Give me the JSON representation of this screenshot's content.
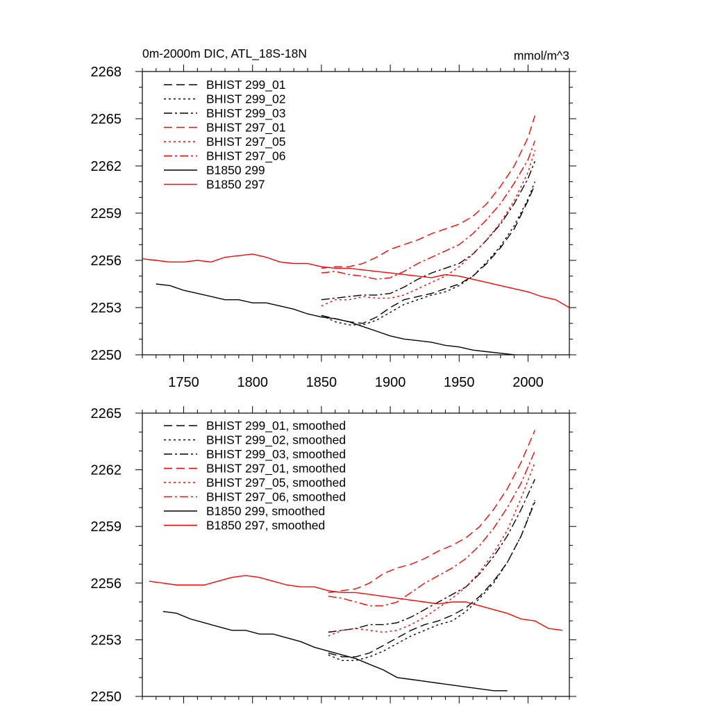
{
  "chart_data": [
    {
      "type": "line",
      "title": "0m-2000m DIC, ATL_18S-18N",
      "units": "mmol/m^3",
      "xlim": [
        1720,
        2030
      ],
      "ylim": [
        2250,
        2268
      ],
      "xticks": [
        1750,
        1800,
        1850,
        1900,
        1950,
        2000
      ],
      "yticks": [
        2250,
        2253,
        2256,
        2259,
        2262,
        2265,
        2268
      ],
      "legend_position": "top-left",
      "series": [
        {
          "name": "BHIST 299_01",
          "color": "#000000",
          "dash": "dash",
          "x": [
            1850,
            1860,
            1870,
            1880,
            1890,
            1900,
            1910,
            1920,
            1930,
            1940,
            1950,
            1960,
            1970,
            1980,
            1990,
            2000,
            2005
          ],
          "y": [
            2252.5,
            2252.3,
            2252.1,
            2252.0,
            2252.4,
            2253.0,
            2253.5,
            2253.7,
            2253.9,
            2254.2,
            2254.5,
            2255.0,
            2255.8,
            2256.8,
            2258.0,
            2259.8,
            2260.8
          ]
        },
        {
          "name": "BHIST 299_02",
          "color": "#000000",
          "dash": "dot",
          "x": [
            1850,
            1860,
            1870,
            1880,
            1890,
            1900,
            1910,
            1920,
            1930,
            1940,
            1950,
            1960,
            1970,
            1980,
            1990,
            2000,
            2005
          ],
          "y": [
            2252.5,
            2252.1,
            2251.9,
            2251.9,
            2252.2,
            2252.7,
            2253.2,
            2253.5,
            2253.8,
            2254.0,
            2254.4,
            2255.0,
            2255.9,
            2256.9,
            2258.2,
            2259.9,
            2261.0
          ]
        },
        {
          "name": "BHIST 299_03",
          "color": "#000000",
          "dash": "dashdot",
          "x": [
            1850,
            1860,
            1870,
            1880,
            1890,
            1900,
            1910,
            1920,
            1930,
            1940,
            1950,
            1960,
            1970,
            1980,
            1990,
            2000,
            2005
          ],
          "y": [
            2253.5,
            2253.6,
            2253.7,
            2253.8,
            2253.8,
            2253.9,
            2254.3,
            2254.8,
            2255.2,
            2255.5,
            2255.8,
            2256.4,
            2257.3,
            2258.3,
            2259.6,
            2261.2,
            2262.3
          ]
        },
        {
          "name": "BHIST 297_01",
          "color": "#ff0000",
          "dash": "dash",
          "x": [
            1850,
            1860,
            1870,
            1880,
            1890,
            1900,
            1910,
            1920,
            1930,
            1940,
            1950,
            1960,
            1970,
            1980,
            1990,
            2000,
            2005
          ],
          "y": [
            2255.5,
            2255.6,
            2255.6,
            2255.8,
            2256.2,
            2256.7,
            2257.0,
            2257.3,
            2257.7,
            2258.0,
            2258.3,
            2258.8,
            2259.6,
            2260.7,
            2262.0,
            2263.8,
            2265.2
          ]
        },
        {
          "name": "BHIST 297_05",
          "color": "#ff0000",
          "dash": "dot",
          "x": [
            1850,
            1860,
            1870,
            1880,
            1890,
            1900,
            1910,
            1920,
            1930,
            1940,
            1950,
            1960,
            1970,
            1980,
            1990,
            2000,
            2005
          ],
          "y": [
            2253.1,
            2253.5,
            2253.5,
            2253.7,
            2253.6,
            2253.6,
            2253.8,
            2254.2,
            2254.6,
            2255.0,
            2255.6,
            2256.4,
            2257.3,
            2258.4,
            2259.8,
            2261.6,
            2263.0
          ]
        },
        {
          "name": "BHIST 297_06",
          "color": "#ff0000",
          "dash": "dashdot",
          "x": [
            1850,
            1860,
            1870,
            1880,
            1890,
            1900,
            1910,
            1920,
            1930,
            1940,
            1950,
            1960,
            1970,
            1980,
            1990,
            2000,
            2005
          ],
          "y": [
            2255.2,
            2255.3,
            2255.1,
            2255.0,
            2254.8,
            2254.9,
            2255.3,
            2255.8,
            2256.2,
            2256.6,
            2257.0,
            2257.7,
            2258.6,
            2259.6,
            2260.9,
            2262.4,
            2263.6
          ]
        },
        {
          "name": "B1850 299",
          "color": "#000000",
          "dash": "solid",
          "x": [
            1730,
            1740,
            1750,
            1760,
            1770,
            1780,
            1790,
            1800,
            1810,
            1820,
            1830,
            1840,
            1850,
            1860,
            1870,
            1880,
            1890,
            1900,
            1910,
            1920,
            1930,
            1940,
            1950,
            1960,
            1970,
            1980,
            1990
          ],
          "y": [
            2254.5,
            2254.4,
            2254.1,
            2253.9,
            2253.7,
            2253.5,
            2253.5,
            2253.3,
            2253.3,
            2253.1,
            2252.9,
            2252.6,
            2252.4,
            2252.3,
            2252.1,
            2251.8,
            2251.5,
            2251.2,
            2251.0,
            2250.9,
            2250.8,
            2250.6,
            2250.5,
            2250.3,
            2250.2,
            2250.1,
            2250.0
          ]
        },
        {
          "name": "B1850 297",
          "color": "#ff0000",
          "dash": "solid",
          "x": [
            1720,
            1730,
            1740,
            1750,
            1760,
            1770,
            1780,
            1790,
            1800,
            1810,
            1820,
            1830,
            1840,
            1850,
            1860,
            1870,
            1880,
            1890,
            1900,
            1910,
            1920,
            1930,
            1940,
            1950,
            1960,
            1970,
            1980,
            1990,
            2000,
            2010,
            2020,
            2030
          ],
          "y": [
            2256.1,
            2256.0,
            2255.9,
            2255.9,
            2256.0,
            2255.9,
            2256.2,
            2256.3,
            2256.4,
            2256.2,
            2255.9,
            2255.8,
            2255.8,
            2255.6,
            2255.5,
            2255.5,
            2255.4,
            2255.3,
            2255.2,
            2255.1,
            2255.0,
            2254.9,
            2255.1,
            2255.0,
            2254.8,
            2254.6,
            2254.4,
            2254.2,
            2254.0,
            2253.7,
            2253.5,
            2253.0
          ]
        }
      ]
    },
    {
      "type": "line",
      "title": "",
      "units": "",
      "xlim": [
        1720,
        2030
      ],
      "ylim": [
        2250,
        2265
      ],
      "xticks": [
        1750,
        1800,
        1850,
        1900,
        1950,
        2000
      ],
      "yticks": [
        2250,
        2253,
        2256,
        2259,
        2262,
        2265
      ],
      "legend_position": "top-left",
      "series": [
        {
          "name": "BHIST 299_01, smoothed",
          "color": "#000000",
          "dash": "dash",
          "x": [
            1855,
            1865,
            1875,
            1885,
            1895,
            1905,
            1915,
            1925,
            1935,
            1945,
            1955,
            1965,
            1975,
            1985,
            1995,
            2005
          ],
          "y": [
            2252.3,
            2252.1,
            2252.1,
            2252.3,
            2252.7,
            2253.1,
            2253.5,
            2253.8,
            2254.0,
            2254.3,
            2254.7,
            2255.3,
            2256.1,
            2257.1,
            2258.5,
            2260.3
          ]
        },
        {
          "name": "BHIST 299_02, smoothed",
          "color": "#000000",
          "dash": "dot",
          "x": [
            1855,
            1865,
            1875,
            1885,
            1895,
            1905,
            1915,
            1925,
            1935,
            1945,
            1955,
            1965,
            1975,
            1985,
            1995,
            2005
          ],
          "y": [
            2252.2,
            2251.9,
            2251.9,
            2252.1,
            2252.4,
            2252.8,
            2253.2,
            2253.5,
            2253.8,
            2254.0,
            2254.5,
            2255.2,
            2256.0,
            2257.1,
            2258.5,
            2260.4
          ]
        },
        {
          "name": "BHIST 299_03, smoothed",
          "color": "#000000",
          "dash": "dashdot",
          "x": [
            1855,
            1865,
            1875,
            1885,
            1895,
            1905,
            1915,
            1925,
            1935,
            1945,
            1955,
            1965,
            1975,
            1985,
            1995,
            2005
          ],
          "y": [
            2253.4,
            2253.5,
            2253.6,
            2253.8,
            2253.8,
            2253.9,
            2254.2,
            2254.6,
            2255.0,
            2255.4,
            2255.8,
            2256.5,
            2257.4,
            2258.5,
            2259.9,
            2261.5
          ]
        },
        {
          "name": "BHIST 297_01, smoothed",
          "color": "#ff0000",
          "dash": "dash",
          "x": [
            1855,
            1865,
            1875,
            1885,
            1895,
            1905,
            1915,
            1925,
            1935,
            1945,
            1955,
            1965,
            1975,
            1985,
            1995,
            2005
          ],
          "y": [
            2255.5,
            2255.6,
            2255.7,
            2256.0,
            2256.5,
            2256.8,
            2257.0,
            2257.3,
            2257.7,
            2258.0,
            2258.4,
            2259.0,
            2259.9,
            2261.0,
            2262.4,
            2264.1
          ]
        },
        {
          "name": "BHIST 297_05, smoothed",
          "color": "#ff0000",
          "dash": "dot",
          "x": [
            1855,
            1865,
            1875,
            1885,
            1895,
            1905,
            1915,
            1925,
            1935,
            1945,
            1955,
            1965,
            1975,
            1985,
            1995,
            2005
          ],
          "y": [
            2253.2,
            2253.5,
            2253.6,
            2253.5,
            2253.4,
            2253.5,
            2253.8,
            2254.2,
            2254.7,
            2255.2,
            2255.8,
            2256.6,
            2257.6,
            2258.8,
            2260.5,
            2262.4
          ]
        },
        {
          "name": "BHIST 297_06, smoothed",
          "color": "#ff0000",
          "dash": "dashdot",
          "x": [
            1855,
            1865,
            1875,
            1885,
            1895,
            1905,
            1915,
            1925,
            1935,
            1945,
            1955,
            1965,
            1975,
            1985,
            1995,
            2005
          ],
          "y": [
            2255.3,
            2255.2,
            2255.0,
            2254.8,
            2254.8,
            2255.0,
            2255.5,
            2256.0,
            2256.4,
            2256.8,
            2257.3,
            2258.0,
            2258.9,
            2260.0,
            2261.3,
            2263.0
          ]
        },
        {
          "name": "B1850 299, smoothed",
          "color": "#000000",
          "dash": "solid",
          "x": [
            1735,
            1745,
            1755,
            1765,
            1775,
            1785,
            1795,
            1805,
            1815,
            1825,
            1835,
            1845,
            1855,
            1865,
            1875,
            1885,
            1895,
            1905,
            1915,
            1925,
            1935,
            1945,
            1955,
            1965,
            1975,
            1985
          ],
          "y": [
            2254.5,
            2254.4,
            2254.1,
            2253.9,
            2253.7,
            2253.5,
            2253.5,
            2253.3,
            2253.3,
            2253.1,
            2252.9,
            2252.6,
            2252.4,
            2252.2,
            2252.0,
            2251.7,
            2251.4,
            2251.0,
            2250.9,
            2250.8,
            2250.7,
            2250.6,
            2250.5,
            2250.4,
            2250.3,
            2250.3
          ]
        },
        {
          "name": "B1850 297, smoothed",
          "color": "#ff0000",
          "dash": "solid",
          "x": [
            1725,
            1735,
            1745,
            1755,
            1765,
            1775,
            1785,
            1795,
            1805,
            1815,
            1825,
            1835,
            1845,
            1855,
            1865,
            1875,
            1885,
            1895,
            1905,
            1915,
            1925,
            1935,
            1945,
            1955,
            1965,
            1975,
            1985,
            1995,
            2005,
            2015,
            2025
          ],
          "y": [
            2256.1,
            2256.0,
            2255.9,
            2255.9,
            2255.9,
            2256.1,
            2256.3,
            2256.4,
            2256.3,
            2256.1,
            2255.9,
            2255.8,
            2255.8,
            2255.6,
            2255.5,
            2255.5,
            2255.4,
            2255.3,
            2255.2,
            2255.1,
            2255.0,
            2254.9,
            2255.0,
            2255.0,
            2254.8,
            2254.6,
            2254.4,
            2254.1,
            2254.0,
            2253.6,
            2253.5
          ]
        }
      ]
    }
  ]
}
